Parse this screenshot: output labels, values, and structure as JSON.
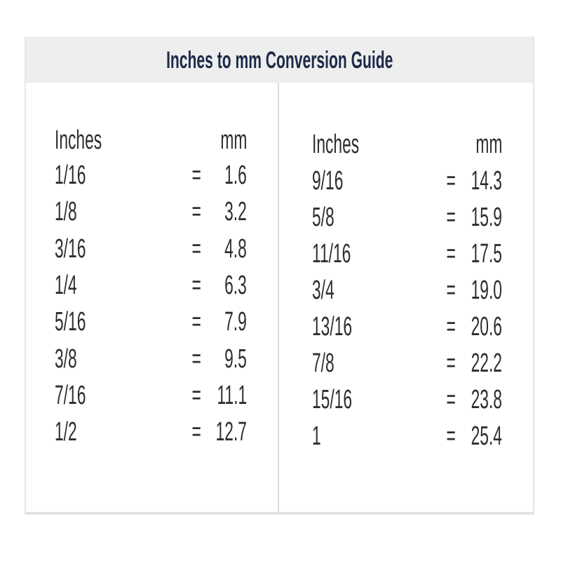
{
  "title": "Inches to mm Conversion Guide",
  "tables": [
    {
      "headers": {
        "inches": "Inches",
        "mm": "mm"
      },
      "rows": [
        {
          "inches": "1/16",
          "eq": "=",
          "mm": "1.6"
        },
        {
          "inches": "1/8",
          "eq": "=",
          "mm": "3.2"
        },
        {
          "inches": "3/16",
          "eq": "=",
          "mm": "4.8"
        },
        {
          "inches": "1/4",
          "eq": "=",
          "mm": "6.3"
        },
        {
          "inches": "5/16",
          "eq": "=",
          "mm": "7.9"
        },
        {
          "inches": "3/8",
          "eq": "=",
          "mm": "9.5"
        },
        {
          "inches": "7/16",
          "eq": "=",
          "mm": "11.1"
        },
        {
          "inches": "1/2",
          "eq": "=",
          "mm": "12.7"
        }
      ]
    },
    {
      "headers": {
        "inches": "Inches",
        "mm": "mm"
      },
      "rows": [
        {
          "inches": "9/16",
          "eq": "=",
          "mm": "14.3"
        },
        {
          "inches": "5/8",
          "eq": "=",
          "mm": "15.9"
        },
        {
          "inches": "11/16",
          "eq": "=",
          "mm": "17.5"
        },
        {
          "inches": "3/4",
          "eq": "=",
          "mm": "19.0"
        },
        {
          "inches": "13/16",
          "eq": "=",
          "mm": "20.6"
        },
        {
          "inches": "7/8",
          "eq": "=",
          "mm": "22.2"
        },
        {
          "inches": "15/16",
          "eq": "=",
          "mm": "23.8"
        },
        {
          "inches": "1",
          "eq": "=",
          "mm": "25.4"
        }
      ]
    }
  ]
}
